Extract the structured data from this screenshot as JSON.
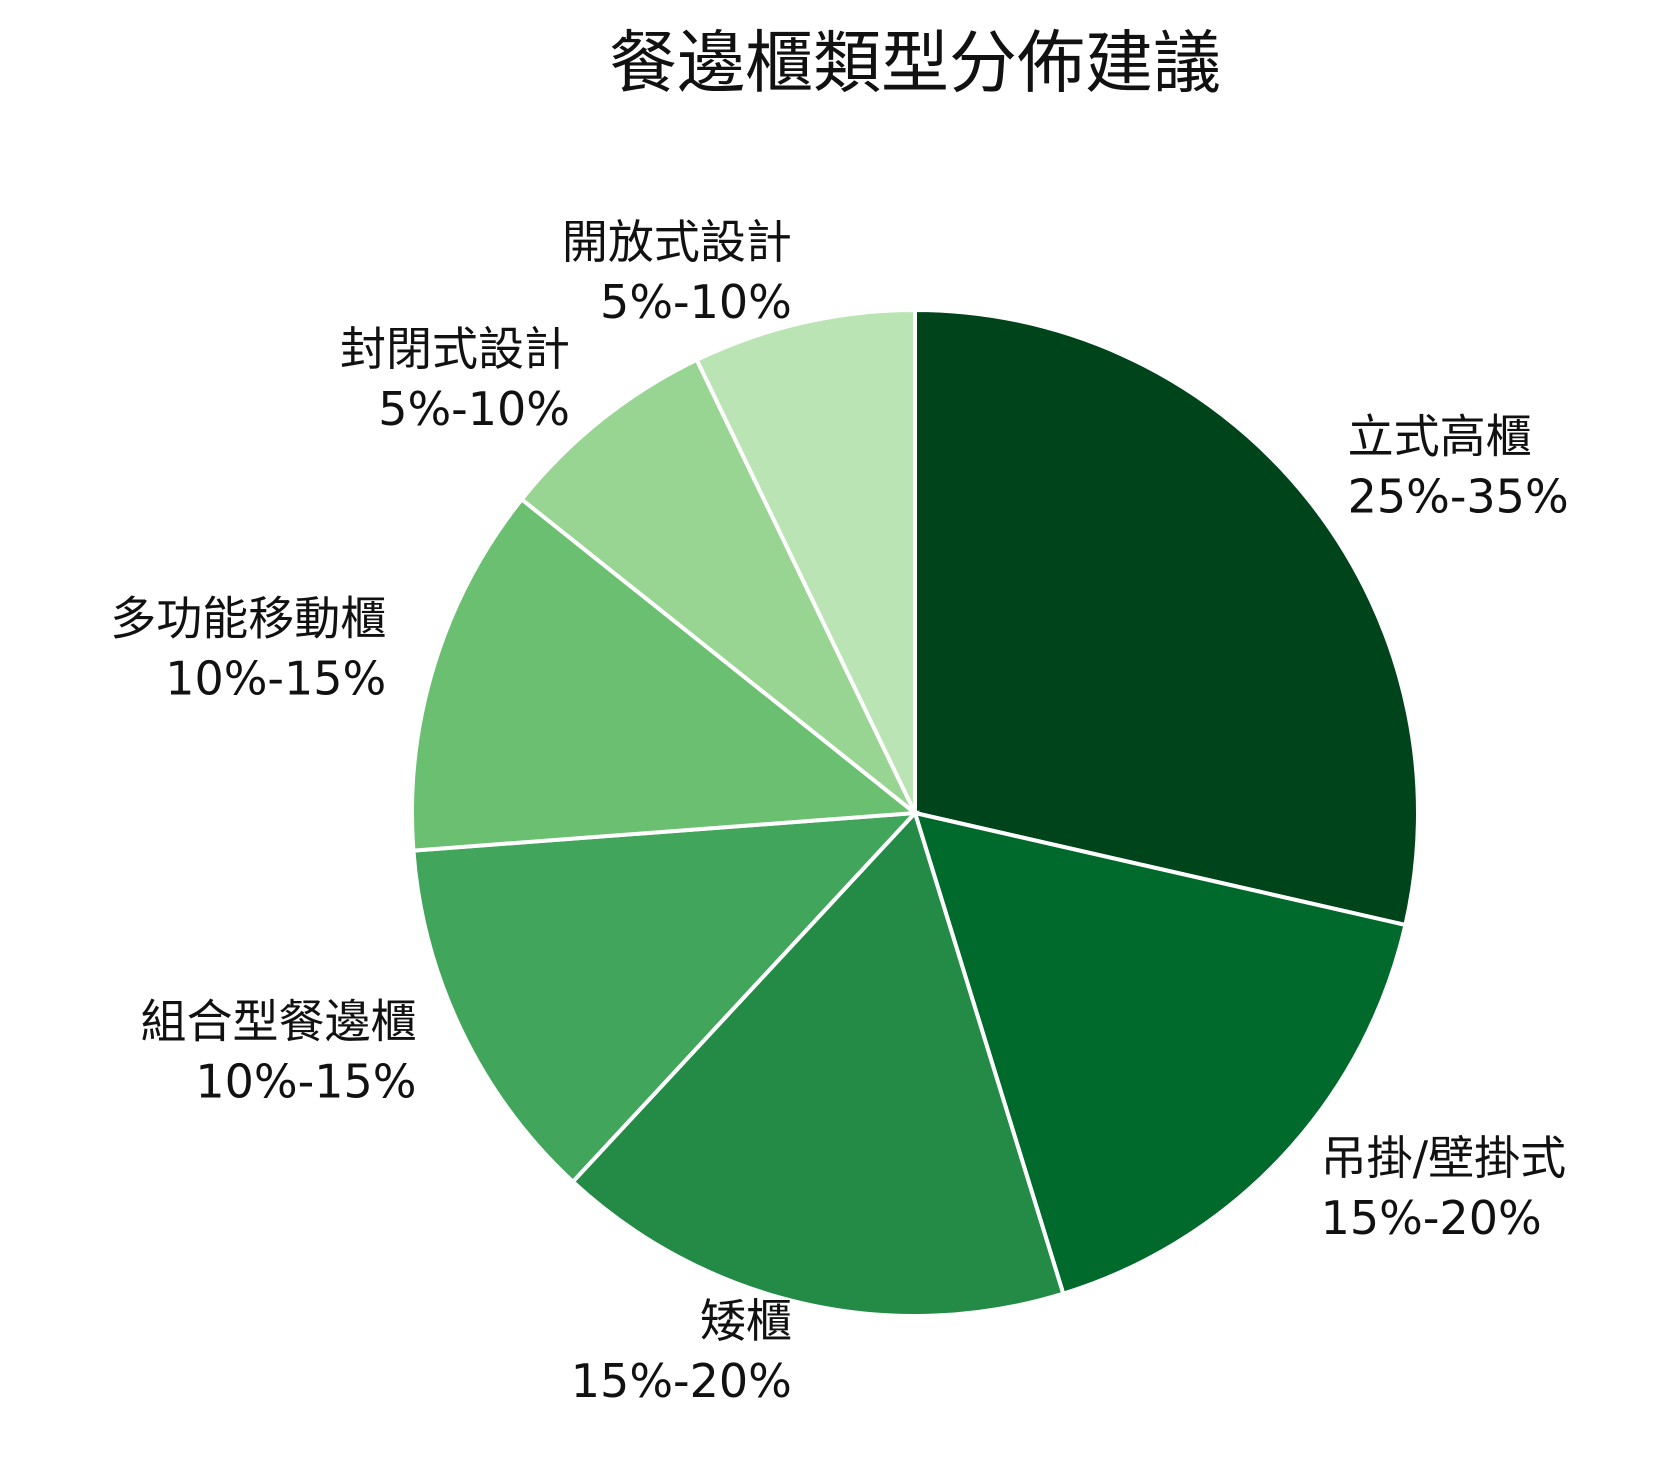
{
  "chart_data": {
    "type": "pie",
    "title": "餐邊櫃類型分佈建議",
    "categories": [
      "立式高櫃",
      "吊掛/壁掛式",
      "矮櫃",
      "組合型餐邊櫃",
      "多功能移動櫃",
      "封閉式設計",
      "開放式設計"
    ],
    "values": [
      30,
      17.5,
      17.5,
      12.5,
      12.5,
      7.5,
      7.5
    ],
    "value_labels": [
      "25%-35%",
      "15%-20%",
      "15%-20%",
      "10%-15%",
      "10%-15%",
      "5%-10%",
      "5%-10%"
    ],
    "colors": [
      "#00441b",
      "#006a2c",
      "#238b45",
      "#41a55c",
      "#6abf71",
      "#98d492",
      "#bbe4b4"
    ]
  }
}
